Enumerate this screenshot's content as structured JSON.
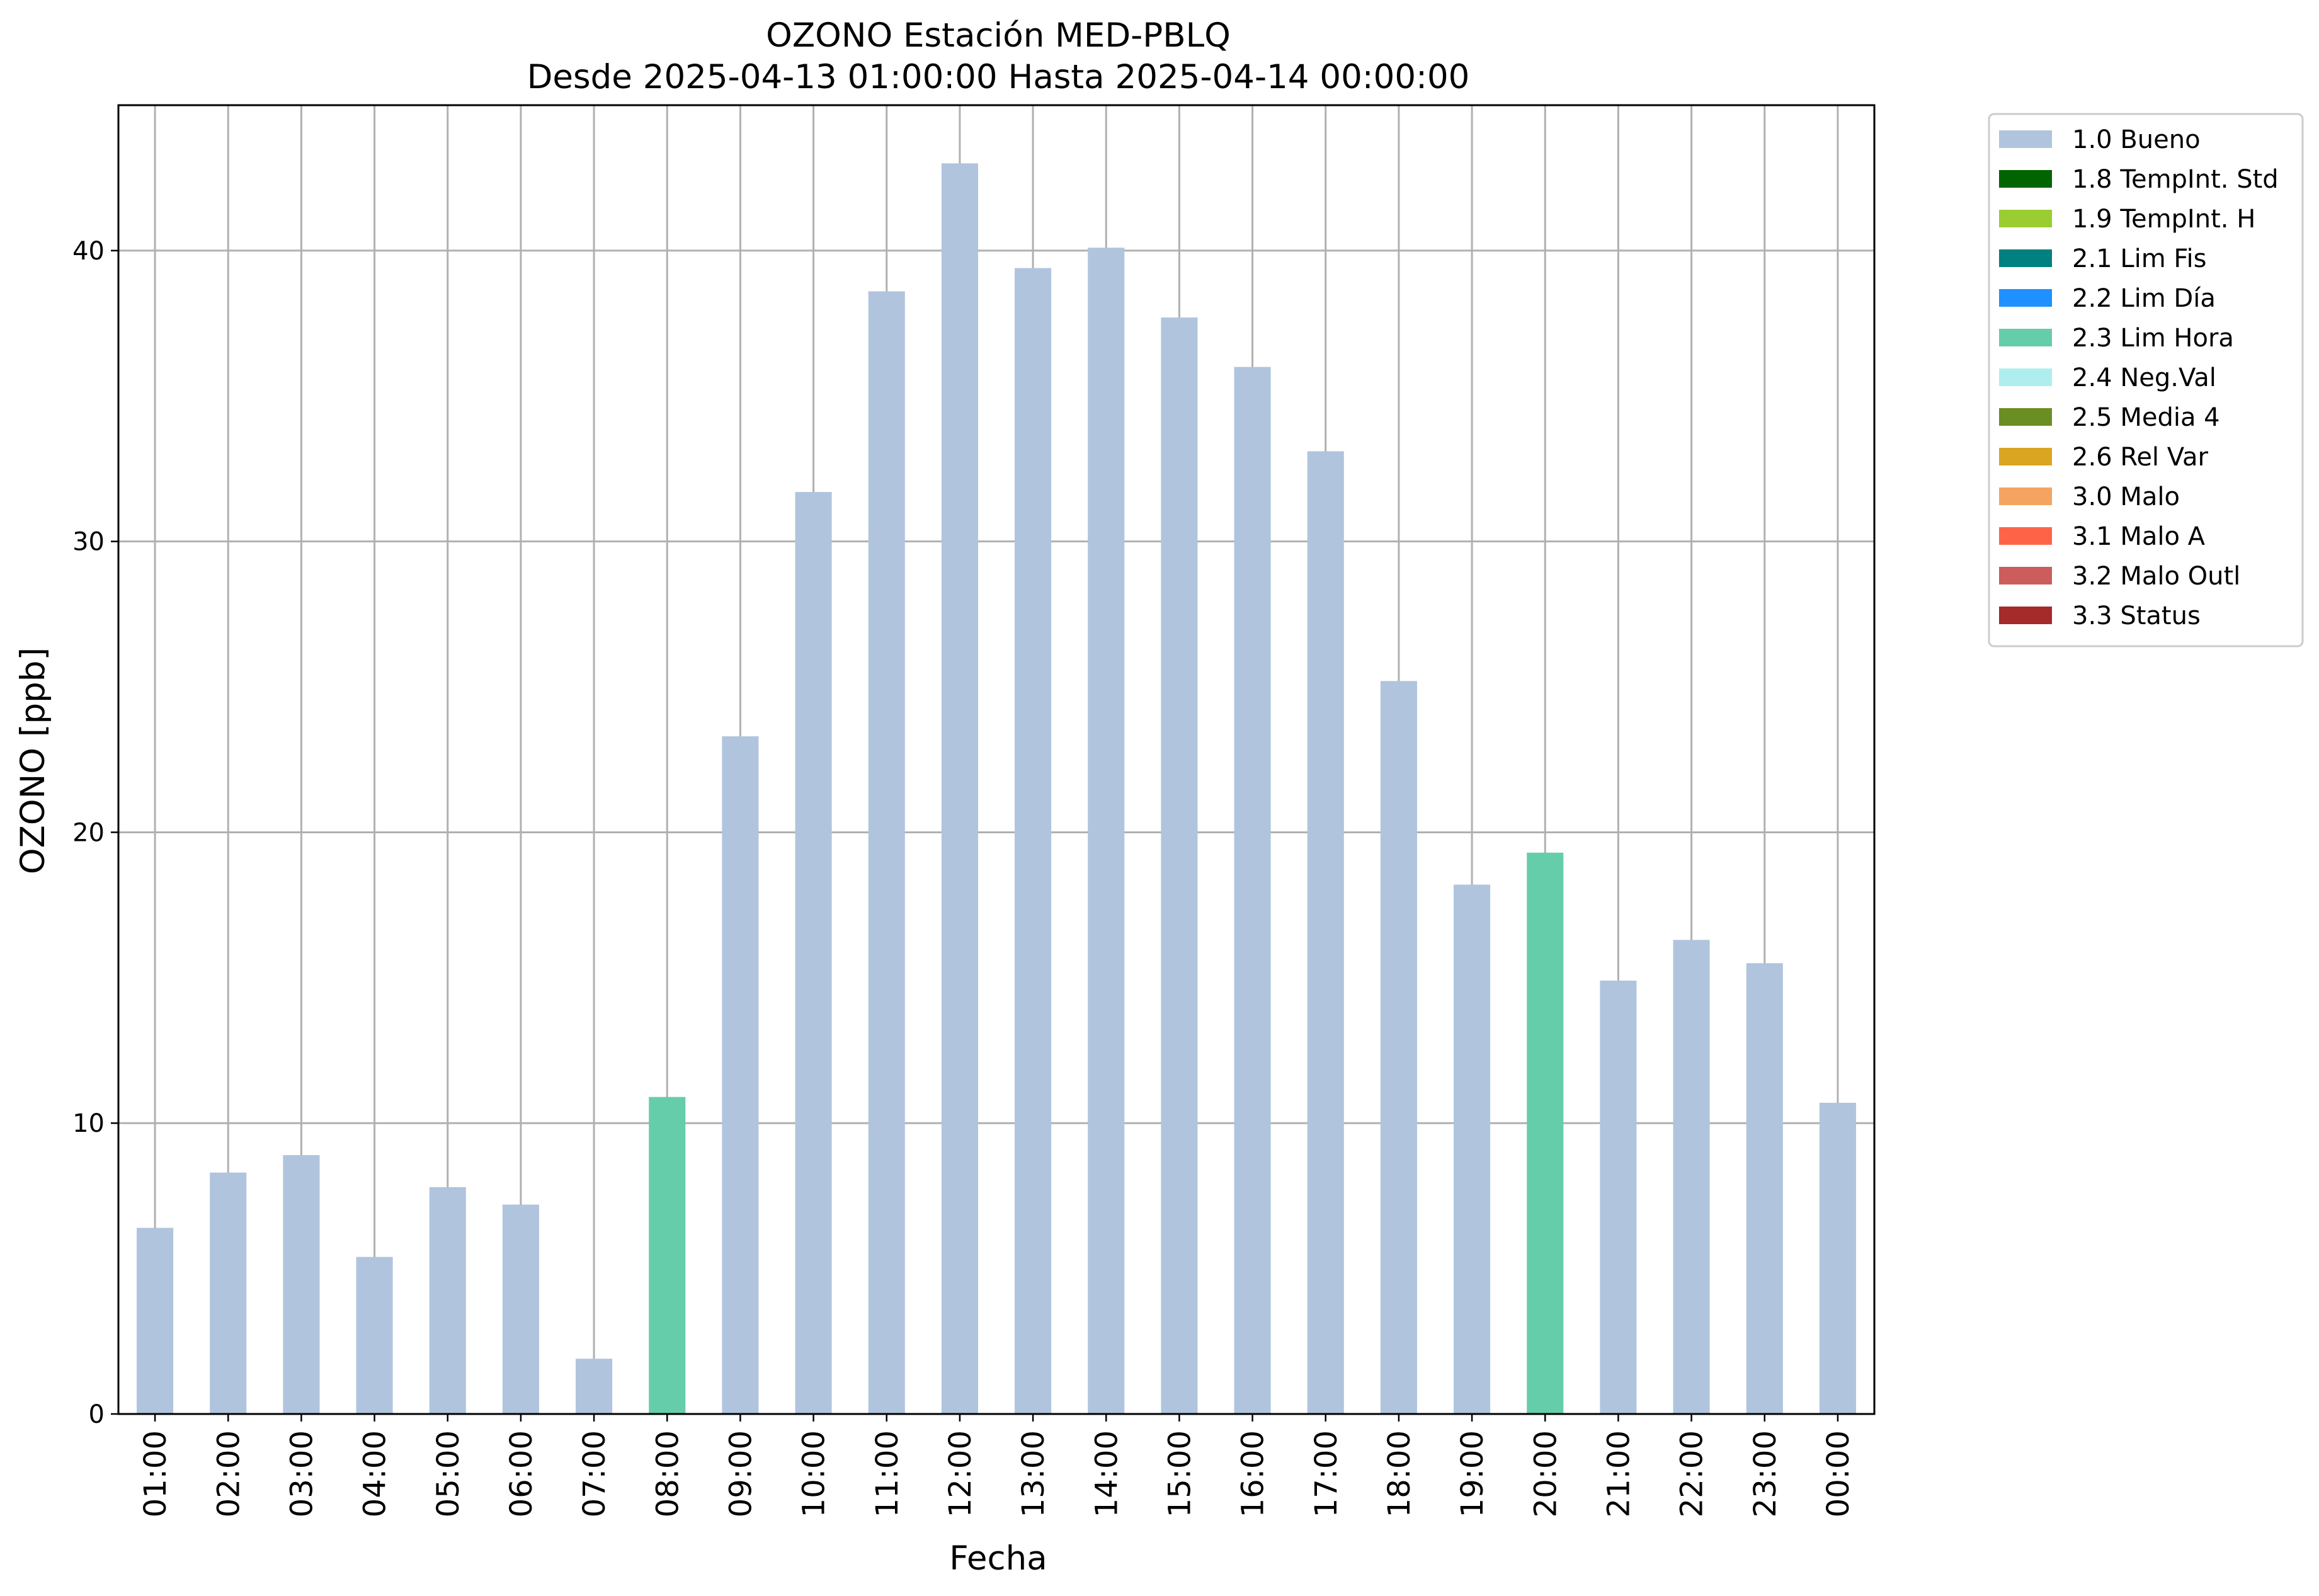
{
  "chart_data": {
    "type": "bar",
    "title": "OZONO Estación MED-PBLQ",
    "subtitle": "Desde 2025-04-13 01:00:00 Hasta 2025-04-14 00:00:00",
    "xlabel": "Fecha",
    "ylabel": "OZONO [ppb]",
    "ylim": [
      0,
      45
    ],
    "yticks": [
      0,
      10,
      20,
      30,
      40
    ],
    "grid": true,
    "legend_position": "outside-top-right",
    "categories": [
      "01:00",
      "02:00",
      "03:00",
      "04:00",
      "05:00",
      "06:00",
      "07:00",
      "08:00",
      "09:00",
      "10:00",
      "11:00",
      "12:00",
      "13:00",
      "14:00",
      "15:00",
      "16:00",
      "17:00",
      "18:00",
      "19:00",
      "20:00",
      "21:00",
      "22:00",
      "23:00",
      "00:00"
    ],
    "values": [
      6.4,
      8.3,
      8.9,
      5.4,
      7.8,
      7.2,
      1.9,
      10.9,
      23.3,
      31.7,
      38.6,
      43.0,
      39.4,
      40.1,
      37.7,
      36.0,
      33.1,
      25.2,
      18.2,
      19.3,
      14.9,
      16.3,
      15.5,
      10.7
    ],
    "flags": [
      "1.0 Bueno",
      "1.0 Bueno",
      "1.0 Bueno",
      "1.0 Bueno",
      "1.0 Bueno",
      "1.0 Bueno",
      "1.0 Bueno",
      "2.3 Lim Hora",
      "1.0 Bueno",
      "1.0 Bueno",
      "1.0 Bueno",
      "1.0 Bueno",
      "1.0 Bueno",
      "1.0 Bueno",
      "1.0 Bueno",
      "1.0 Bueno",
      "1.0 Bueno",
      "1.0 Bueno",
      "1.0 Bueno",
      "2.3 Lim Hora",
      "1.0 Bueno",
      "1.0 Bueno",
      "1.0 Bueno",
      "1.0 Bueno"
    ],
    "legend": [
      {
        "label": "1.0 Bueno",
        "color": "#b0c4de"
      },
      {
        "label": "1.8 TempInt. Std",
        "color": "#006400"
      },
      {
        "label": "1.9 TempInt. H",
        "color": "#9acd32"
      },
      {
        "label": "2.1 Lim Fis",
        "color": "#008080"
      },
      {
        "label": "2.2 Lim Día",
        "color": "#1e90ff"
      },
      {
        "label": "2.3 Lim Hora",
        "color": "#66cdaa"
      },
      {
        "label": "2.4 Neg.Val",
        "color": "#afeeee"
      },
      {
        "label": "2.5 Media 4",
        "color": "#6b8e23"
      },
      {
        "label": "2.6 Rel Var",
        "color": "#daa520"
      },
      {
        "label": "3.0 Malo",
        "color": "#f4a460"
      },
      {
        "label": "3.1 Malo A",
        "color": "#ff6347"
      },
      {
        "label": "3.2 Malo Outl",
        "color": "#cd5c5c"
      },
      {
        "label": "3.3 Status",
        "color": "#a52a2a"
      }
    ]
  }
}
